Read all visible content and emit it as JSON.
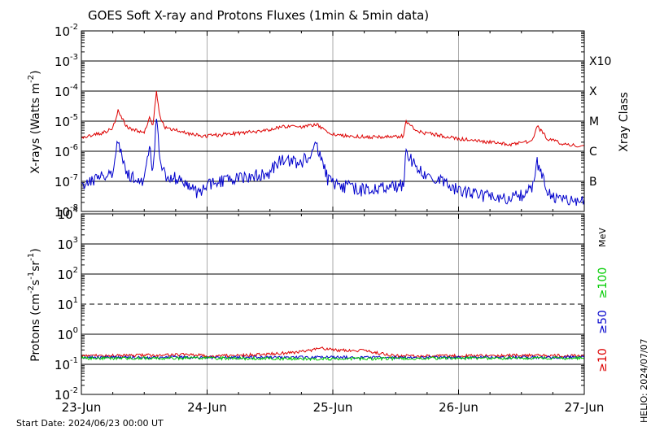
{
  "chart_data": [
    {
      "type": "line",
      "panel": "xray",
      "title": "GOES Soft X-ray and Protons Fluxes   (1min & 5min data)",
      "ylabel": "X-rays (Watts m^-2)",
      "ylabel_main": "X-rays (Watts m",
      "ylabel_sup": "-2",
      "ylabel_close": ")",
      "yscale": "log",
      "ylim": [
        1e-08,
        0.01
      ],
      "y_ticks": [
        {
          "base": "10",
          "exp": "-8",
          "value": 1e-08
        },
        {
          "base": "10",
          "exp": "-7",
          "value": 1e-07
        },
        {
          "base": "10",
          "exp": "-6",
          "value": 1e-06
        },
        {
          "base": "10",
          "exp": "-5",
          "value": 1e-05
        },
        {
          "base": "10",
          "exp": "-4",
          "value": 0.0001
        },
        {
          "base": "10",
          "exp": "-3",
          "value": 0.001
        },
        {
          "base": "10",
          "exp": "-2",
          "value": 0.01
        }
      ],
      "right_label": "Xray Class",
      "classes": [
        {
          "label": "B",
          "value": 1e-07
        },
        {
          "label": "C",
          "value": 1e-06
        },
        {
          "label": "M",
          "value": 1e-05
        },
        {
          "label": "X",
          "value": 0.0001
        },
        {
          "label": "X10",
          "value": 0.001
        }
      ],
      "x_range": [
        "2024-06-23",
        "2024-06-27"
      ],
      "series": [
        {
          "name": "",
          "color": "#dd0000",
          "points": [
            [
              "2024-06-23 00:00",
              2.8e-06
            ],
            [
              "2024-06-23 02:00",
              3.5e-06
            ],
            [
              "2024-06-23 04:00",
              4e-06
            ],
            [
              "2024-06-23 06:00",
              6e-06
            ],
            [
              "2024-06-23 07:00",
              2.2e-05
            ],
            [
              "2024-06-23 08:30",
              7e-06
            ],
            [
              "2024-06-23 10:00",
              5e-06
            ],
            [
              "2024-06-23 12:00",
              4.5e-06
            ],
            [
              "2024-06-23 13:00",
              1.3e-05
            ],
            [
              "2024-06-23 13:40",
              7e-06
            ],
            [
              "2024-06-23 14:20",
              9e-05
            ],
            [
              "2024-06-23 15:00",
              1.5e-05
            ],
            [
              "2024-06-23 16:00",
              6e-06
            ],
            [
              "2024-06-23 18:00",
              5e-06
            ],
            [
              "2024-06-23 20:00",
              4e-06
            ],
            [
              "2024-06-23 22:00",
              3.5e-06
            ],
            [
              "2024-06-24 00:00",
              3.2e-06
            ],
            [
              "2024-06-24 06:00",
              4e-06
            ],
            [
              "2024-06-24 12:00",
              5e-06
            ],
            [
              "2024-06-24 14:00",
              6.5e-06
            ],
            [
              "2024-06-24 18:00",
              6.5e-06
            ],
            [
              "2024-06-24 21:00",
              7.5e-06
            ],
            [
              "2024-06-24 23:00",
              4.5e-06
            ],
            [
              "2024-06-25 00:00",
              3.5e-06
            ],
            [
              "2024-06-25 06:00",
              3e-06
            ],
            [
              "2024-06-25 12:00",
              3e-06
            ],
            [
              "2024-06-25 13:30",
              3.2e-06
            ],
            [
              "2024-06-25 14:00",
              1e-05
            ],
            [
              "2024-06-25 16:00",
              4.5e-06
            ],
            [
              "2024-06-25 20:00",
              3.5e-06
            ],
            [
              "2024-06-26 00:00",
              2.6e-06
            ],
            [
              "2024-06-26 06:00",
              2e-06
            ],
            [
              "2024-06-26 10:00",
              1.7e-06
            ],
            [
              "2024-06-26 14:00",
              2.2e-06
            ],
            [
              "2024-06-26 15:00",
              7e-06
            ],
            [
              "2024-06-26 17:00",
              2.5e-06
            ],
            [
              "2024-06-26 20:00",
              1.8e-06
            ],
            [
              "2024-06-27 00:00",
              1.5e-06
            ]
          ]
        },
        {
          "name": "",
          "color": "#0000cc",
          "points": [
            [
              "2024-06-23 00:00",
              6e-08
            ],
            [
              "2024-06-23 02:00",
              1e-07
            ],
            [
              "2024-06-23 04:00",
              1.5e-07
            ],
            [
              "2024-06-23 06:00",
              2e-07
            ],
            [
              "2024-06-23 07:00",
              2.5e-06
            ],
            [
              "2024-06-23 08:30",
              2e-07
            ],
            [
              "2024-06-23 10:00",
              1.2e-07
            ],
            [
              "2024-06-23 12:00",
              1e-07
            ],
            [
              "2024-06-23 13:00",
              1.5e-06
            ],
            [
              "2024-06-23 13:40",
              2e-07
            ],
            [
              "2024-06-23 14:20",
              1.8e-05
            ],
            [
              "2024-06-23 15:00",
              5e-07
            ],
            [
              "2024-06-23 16:00",
              1.5e-07
            ],
            [
              "2024-06-23 18:00",
              1.2e-07
            ],
            [
              "2024-06-23 20:00",
              1e-07
            ],
            [
              "2024-06-23 22:00",
              4e-08
            ],
            [
              "2024-06-24 00:00",
              8e-08
            ],
            [
              "2024-06-24 06:00",
              1.2e-07
            ],
            [
              "2024-06-24 12:00",
              2e-07
            ],
            [
              "2024-06-24 14:00",
              5e-07
            ],
            [
              "2024-06-24 18:00",
              4e-07
            ],
            [
              "2024-06-24 21:00",
              1.5e-06
            ],
            [
              "2024-06-24 23:00",
              1.2e-07
            ],
            [
              "2024-06-25 00:00",
              8e-08
            ],
            [
              "2024-06-25 06:00",
              5e-08
            ],
            [
              "2024-06-25 12:00",
              7e-08
            ],
            [
              "2024-06-25 13:30",
              8e-08
            ],
            [
              "2024-06-25 14:00",
              1e-06
            ],
            [
              "2024-06-25 16:00",
              2.5e-07
            ],
            [
              "2024-06-25 20:00",
              1.2e-07
            ],
            [
              "2024-06-26 00:00",
              5e-08
            ],
            [
              "2024-06-26 06:00",
              3e-08
            ],
            [
              "2024-06-26 10:00",
              2.5e-08
            ],
            [
              "2024-06-26 14:00",
              5e-08
            ],
            [
              "2024-06-26 15:00",
              4e-07
            ],
            [
              "2024-06-26 17:00",
              4e-08
            ],
            [
              "2024-06-26 20:00",
              2.5e-08
            ],
            [
              "2024-06-27 00:00",
              2.5e-08
            ]
          ]
        }
      ]
    },
    {
      "type": "line",
      "panel": "protons",
      "ylabel": "Protons (cm^-2 s^-1 sr^-1)",
      "ylabel_parts": [
        "Protons (cm",
        "-2",
        "s",
        "-1",
        "sr",
        "-1",
        ")"
      ],
      "yscale": "log",
      "ylim": [
        0.01,
        10000
      ],
      "y_ticks": [
        {
          "base": "10",
          "exp": "-2",
          "value": 0.01
        },
        {
          "base": "10",
          "exp": "-1",
          "value": 0.1
        },
        {
          "base": "10",
          "exp": "0",
          "value": 1
        },
        {
          "base": "10",
          "exp": "1",
          "value": 10
        },
        {
          "base": "10",
          "exp": "2",
          "value": 100
        },
        {
          "base": "10",
          "exp": "3",
          "value": 1000
        },
        {
          "base": "10",
          "exp": "4",
          "value": 10000
        }
      ],
      "threshold": 10,
      "energy_unit": "MeV",
      "x_range": [
        "2024-06-23",
        "2024-06-27"
      ],
      "x_ticks": [
        "23-Jun",
        "24-Jun",
        "25-Jun",
        "26-Jun",
        "27-Jun"
      ],
      "series": [
        {
          "name": "≥10",
          "color": "#dd0000",
          "points": [
            [
              "2024-06-23 00:00",
              0.19
            ],
            [
              "2024-06-23 12:00",
              0.2
            ],
            [
              "2024-06-23 23:00",
              0.21
            ],
            [
              "2024-06-24 00:00",
              0.18
            ],
            [
              "2024-06-24 12:00",
              0.22
            ],
            [
              "2024-06-24 18:00",
              0.26
            ],
            [
              "2024-06-24 22:00",
              0.34
            ],
            [
              "2024-06-25 00:00",
              0.3
            ],
            [
              "2024-06-25 06:00",
              0.28
            ],
            [
              "2024-06-25 12:00",
              0.19
            ],
            [
              "2024-06-26 00:00",
              0.19
            ],
            [
              "2024-06-26 12:00",
              0.2
            ],
            [
              "2024-06-27 00:00",
              0.19
            ]
          ]
        },
        {
          "name": "≥50",
          "color": "#0000cc",
          "points": [
            [
              "2024-06-23 00:00",
              0.17
            ],
            [
              "2024-06-24 00:00",
              0.17
            ],
            [
              "2024-06-24 12:00",
              0.17
            ],
            [
              "2024-06-25 00:00",
              0.17
            ],
            [
              "2024-06-26 00:00",
              0.17
            ],
            [
              "2024-06-27 00:00",
              0.17
            ]
          ]
        },
        {
          "name": "≥100",
          "color": "#00cc00",
          "points": [
            [
              "2024-06-23 00:00",
              0.16
            ],
            [
              "2024-06-24 00:00",
              0.16
            ],
            [
              "2024-06-25 00:00",
              0.15
            ],
            [
              "2024-06-26 00:00",
              0.16
            ],
            [
              "2024-06-27 00:00",
              0.16
            ]
          ]
        }
      ]
    }
  ],
  "footer": {
    "start_date": "Start Date: 2024/06/23 00:00 UT",
    "stamp": "HELIO: 2024/07/07"
  }
}
